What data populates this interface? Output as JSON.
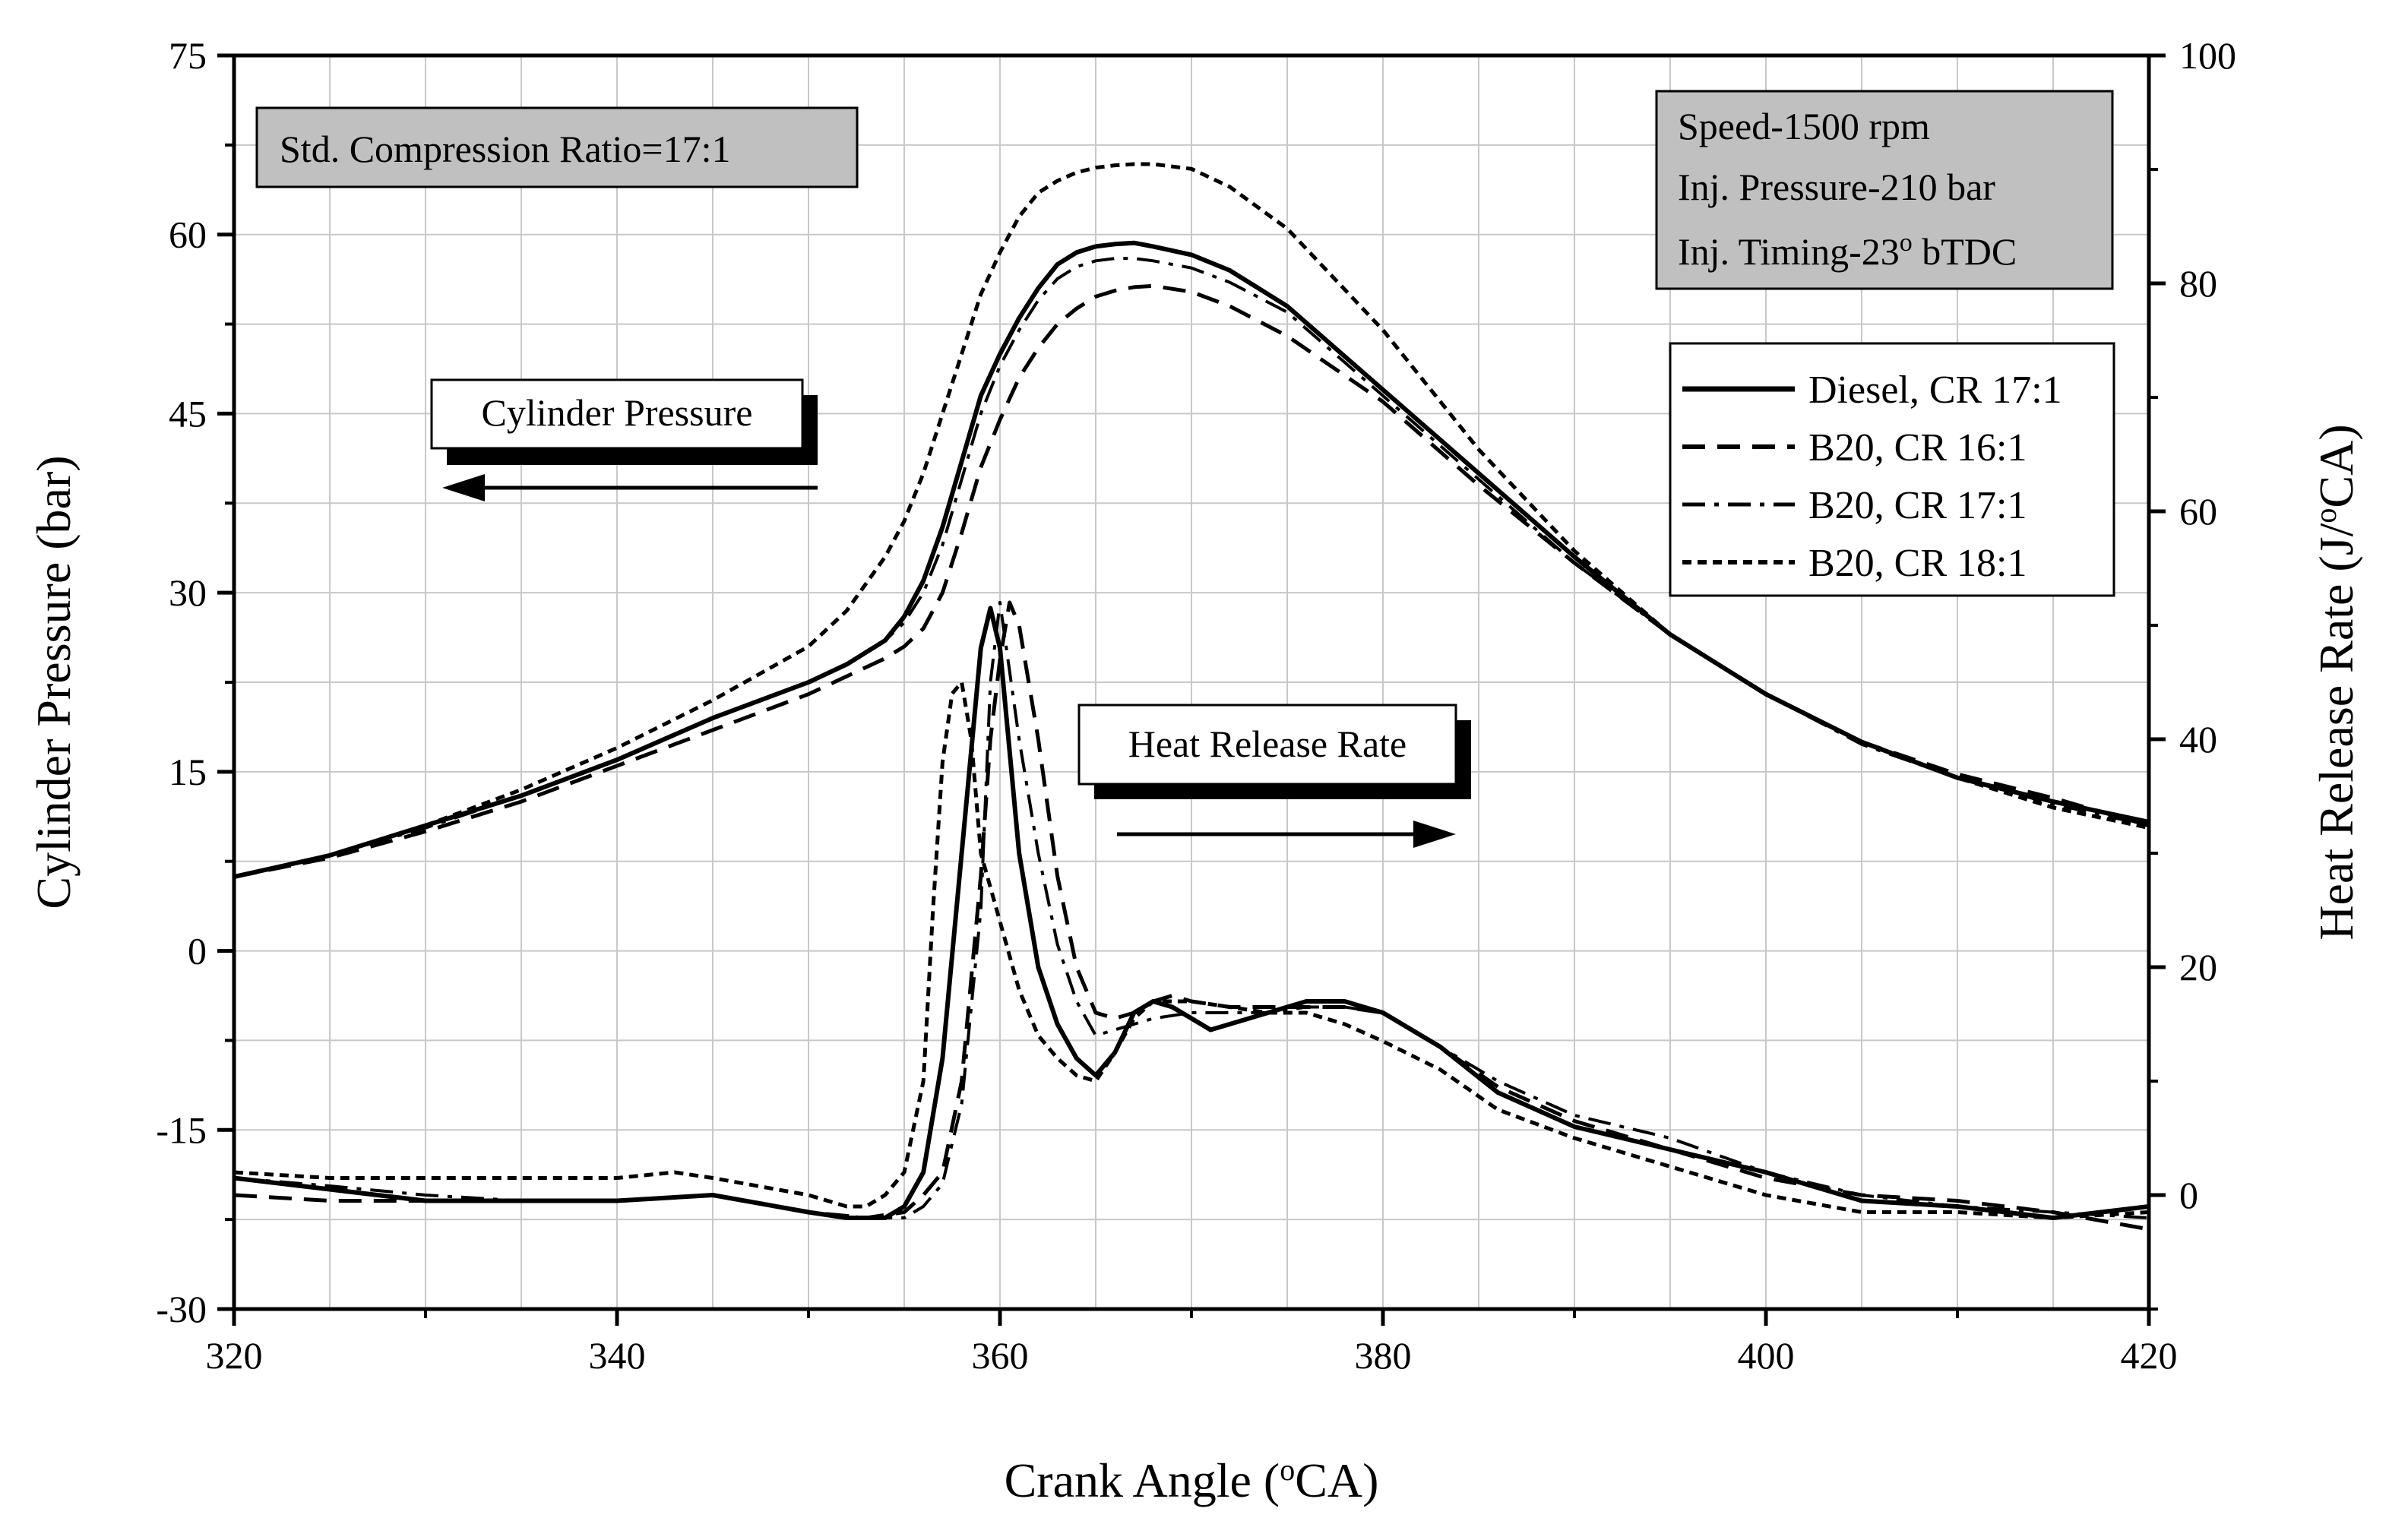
{
  "chart_data": {
    "type": "line",
    "xlabel": {
      "main": "Crank Angle (",
      "sup": "o",
      "tail": "CA)"
    },
    "ylabel_left": "Cylinder Pressure (bar)",
    "ylabel_right": {
      "main": "Heat Release Rate (J/",
      "sup": "o",
      "tail": "CA)"
    },
    "xlim": [
      320,
      420
    ],
    "ylim_left": [
      -30,
      75
    ],
    "ylim_right": [
      -10,
      100
    ],
    "x_ticks": [
      "320",
      "340",
      "360",
      "380",
      "400",
      "420"
    ],
    "x_tick_values": [
      320,
      340,
      360,
      380,
      400,
      420
    ],
    "y_left_ticks": [
      "75",
      "60",
      "45",
      "30",
      "15",
      "0",
      "-15",
      "-30"
    ],
    "y_left_tick_values": [
      75,
      60,
      45,
      30,
      15,
      0,
      -15,
      -30
    ],
    "y_right_ticks": [
      "100",
      "80",
      "60",
      "40",
      "20",
      "0"
    ],
    "y_right_tick_values": [
      100,
      80,
      60,
      40,
      20,
      0
    ],
    "grid": true,
    "annotations": {
      "compression_ratio": "Std. Compression Ratio=17:1",
      "speed": "Speed-1500 rpm",
      "inj_pressure": "Inj. Pressure-210 bar",
      "inj_timing": {
        "main": "Inj. Timing-23",
        "sup": "o",
        "tail": " bTDC"
      },
      "cylinder_pressure": "Cylinder Pressure",
      "heat_release_rate": "Heat Release Rate"
    },
    "legend": {
      "position": "right",
      "entries": [
        "Diesel, CR 17:1",
        "B20, CR 16:1",
        "B20, CR 17:1",
        "B20, CR 18:1"
      ]
    },
    "series": [
      {
        "name": "Diesel, CR 17:1",
        "style": "solid",
        "axis": "left",
        "kind": "pressure",
        "x": [
          320,
          325,
          330,
          335,
          340,
          345,
          350,
          352,
          354,
          355,
          356,
          357,
          358,
          359,
          360,
          361,
          362,
          363,
          364,
          365,
          366,
          367,
          368,
          370,
          372,
          375,
          380,
          385,
          390,
          395,
          400,
          405,
          410,
          415,
          420
        ],
        "y": [
          6.2,
          8.0,
          10.5,
          13.0,
          16.0,
          19.5,
          22.5,
          24.0,
          26.0,
          28.0,
          31.0,
          35.5,
          41.0,
          46.5,
          50.0,
          53.0,
          55.5,
          57.5,
          58.5,
          59.0,
          59.2,
          59.3,
          59.0,
          58.3,
          57.0,
          54.0,
          47.0,
          40.0,
          33.0,
          26.5,
          21.5,
          17.5,
          14.5,
          12.5,
          10.8
        ]
      },
      {
        "name": "B20, CR 16:1",
        "style": "dashed",
        "axis": "left",
        "kind": "pressure",
        "x": [
          320,
          325,
          330,
          335,
          340,
          345,
          350,
          352,
          354,
          355,
          356,
          357,
          358,
          359,
          360,
          361,
          362,
          363,
          364,
          365,
          366,
          367,
          368,
          370,
          372,
          375,
          380,
          385,
          390,
          395,
          400,
          405,
          410,
          415,
          420
        ],
        "y": [
          6.2,
          7.8,
          10.0,
          12.5,
          15.5,
          18.5,
          21.5,
          23.0,
          24.5,
          25.5,
          27.0,
          30.0,
          35.0,
          40.5,
          44.5,
          48.0,
          50.5,
          52.5,
          53.8,
          54.8,
          55.3,
          55.6,
          55.7,
          55.2,
          54.0,
          51.5,
          46.0,
          39.0,
          32.5,
          26.5,
          21.5,
          17.5,
          14.8,
          12.8,
          10.5
        ]
      },
      {
        "name": "B20, CR 17:1",
        "style": "dashdot",
        "axis": "left",
        "kind": "pressure",
        "x": [
          320,
          325,
          330,
          335,
          340,
          345,
          350,
          352,
          354,
          355,
          356,
          357,
          358,
          359,
          360,
          361,
          362,
          363,
          364,
          365,
          366,
          367,
          368,
          370,
          372,
          375,
          380,
          385,
          390,
          395,
          400,
          405,
          410,
          415,
          420
        ],
        "y": [
          6.2,
          8.0,
          10.3,
          13.0,
          16.0,
          19.5,
          22.5,
          24.0,
          26.0,
          27.5,
          30.0,
          34.0,
          39.5,
          45.0,
          49.0,
          52.0,
          54.5,
          56.3,
          57.3,
          57.8,
          58.0,
          58.0,
          57.8,
          57.2,
          56.0,
          53.5,
          46.5,
          39.5,
          32.5,
          26.5,
          21.5,
          17.3,
          14.5,
          12.3,
          10.5
        ]
      },
      {
        "name": "B20, CR 18:1",
        "style": "dotted",
        "axis": "left",
        "kind": "pressure",
        "x": [
          320,
          325,
          330,
          335,
          340,
          345,
          350,
          352,
          354,
          355,
          356,
          357,
          358,
          359,
          360,
          361,
          362,
          363,
          364,
          365,
          366,
          367,
          368,
          370,
          372,
          375,
          380,
          385,
          390,
          395,
          400,
          405,
          410,
          415,
          420
        ],
        "y": [
          6.2,
          8.0,
          10.5,
          13.5,
          17.0,
          21.0,
          25.5,
          28.5,
          33.0,
          36.0,
          40.0,
          45.0,
          50.0,
          55.0,
          58.5,
          61.5,
          63.5,
          64.5,
          65.2,
          65.6,
          65.8,
          65.9,
          65.9,
          65.5,
          64.0,
          60.5,
          52.0,
          42.0,
          33.5,
          26.5,
          21.5,
          17.5,
          14.5,
          12.0,
          10.3
        ]
      },
      {
        "name": "Diesel, CR 17:1",
        "style": "solid",
        "axis": "right",
        "kind": "hrr",
        "x": [
          320,
          325,
          330,
          335,
          340,
          345,
          350,
          352,
          354,
          355,
          356,
          357,
          358,
          359,
          359.5,
          360,
          361,
          362,
          363,
          364,
          365,
          366,
          367,
          368,
          369,
          370,
          371,
          372,
          374,
          376,
          378,
          380,
          383,
          386,
          390,
          395,
          400,
          403,
          405,
          410,
          415,
          420
        ],
        "y": [
          1.5,
          0.5,
          -0.5,
          -0.5,
          -0.5,
          0,
          -1.5,
          -2,
          -2,
          -1,
          2,
          12,
          30,
          48,
          51.5,
          48,
          30,
          20,
          15,
          12,
          10.5,
          12.5,
          16,
          17,
          16.5,
          15.5,
          14.5,
          15,
          16,
          17,
          17,
          16,
          13,
          9,
          6,
          4,
          2,
          0.5,
          -0.5,
          -1,
          -2,
          -1
        ]
      },
      {
        "name": "B20, CR 16:1",
        "style": "dashed",
        "axis": "right",
        "kind": "hrr",
        "x": [
          320,
          325,
          330,
          335,
          340,
          345,
          350,
          353,
          355,
          356,
          357,
          358,
          359,
          359.5,
          360,
          360.5,
          361,
          362,
          363,
          364,
          365,
          366,
          367,
          368,
          369,
          370,
          372,
          374,
          376,
          378,
          380,
          383,
          386,
          390,
          395,
          400,
          405,
          410,
          415,
          420
        ],
        "y": [
          0,
          -0.5,
          -0.5,
          -0.5,
          -0.5,
          0,
          -1.5,
          -2,
          -1.5,
          0,
          2,
          10,
          28,
          40,
          47,
          52,
          50,
          40,
          28,
          20,
          16,
          15.5,
          16,
          17,
          17.5,
          17,
          16.5,
          16.5,
          16.5,
          16.5,
          16,
          13,
          9.5,
          6.5,
          4,
          1.5,
          0,
          -0.5,
          -1.5,
          -3
        ]
      },
      {
        "name": "B20, CR 17:1",
        "style": "dashdot",
        "axis": "right",
        "kind": "hrr",
        "x": [
          320,
          325,
          330,
          335,
          340,
          345,
          350,
          353,
          355,
          356,
          357,
          358,
          359,
          359.5,
          360,
          361,
          362,
          363,
          364,
          365,
          366,
          367,
          368,
          370,
          372,
          374,
          376,
          378,
          380,
          383,
          386,
          390,
          395,
          400,
          405,
          410,
          415,
          420
        ],
        "y": [
          1.5,
          0.8,
          0,
          -0.5,
          -0.5,
          0,
          -1.5,
          -2,
          -2,
          -1,
          1,
          8,
          25,
          45,
          52,
          40,
          30,
          22,
          17,
          14,
          14.5,
          15,
          15.5,
          16,
          16,
          16,
          16.5,
          16.5,
          16,
          13,
          10,
          7,
          5,
          2,
          0,
          -1,
          -1.5,
          -2
        ]
      },
      {
        "name": "B20, CR 18:1",
        "style": "dotted",
        "axis": "right",
        "kind": "hrr",
        "x": [
          320,
          325,
          330,
          335,
          340,
          343,
          345,
          350,
          352,
          353,
          354,
          355,
          356,
          356.5,
          357,
          357.5,
          358,
          358.5,
          359,
          360,
          361,
          362,
          363,
          364,
          365,
          366,
          367,
          368,
          370,
          372,
          374,
          376,
          378,
          380,
          383,
          386,
          390,
          395,
          400,
          405,
          410,
          415,
          420
        ],
        "y": [
          2,
          1.5,
          1.5,
          1.5,
          1.5,
          2,
          1.5,
          0,
          -1,
          -1,
          0,
          2,
          10,
          25,
          38,
          44,
          45,
          40,
          30,
          24,
          18,
          14,
          12,
          10.5,
          10,
          12.5,
          15.5,
          17,
          17,
          16.5,
          16,
          16,
          15,
          13.5,
          11,
          7.5,
          5,
          2.5,
          0,
          -1.5,
          -1.5,
          -2,
          -1.5
        ]
      }
    ]
  }
}
